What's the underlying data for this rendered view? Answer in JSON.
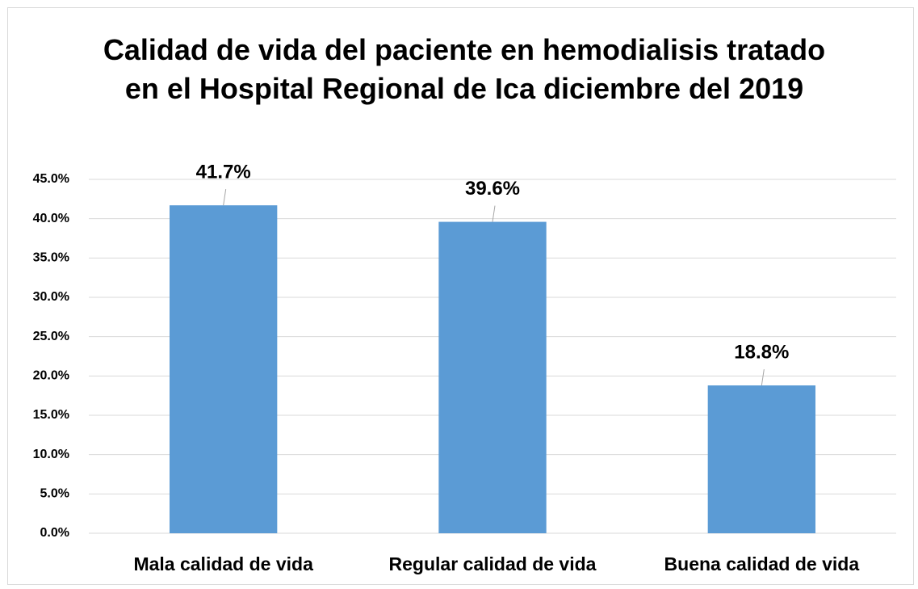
{
  "chart_data": {
    "type": "bar",
    "title": "Calidad de vida del paciente en hemodialisis tratado en el Hospital Regional de Ica diciembre del 2019",
    "categories": [
      "Mala calidad de vida",
      "Regular calidad de vida",
      "Buena calidad de vida"
    ],
    "values": [
      41.7,
      39.6,
      18.8
    ],
    "value_labels": [
      "41.7%",
      "39.6%",
      "18.8%"
    ],
    "color": "#5b9bd5",
    "ylim": [
      0,
      45
    ],
    "yticks": [
      {
        "value": 0,
        "label": "0.0%"
      },
      {
        "value": 5,
        "label": "5.0%"
      },
      {
        "value": 10,
        "label": "10.0%"
      },
      {
        "value": 15,
        "label": "15.0%"
      },
      {
        "value": 20,
        "label": "20.0%"
      },
      {
        "value": 25,
        "label": "25.0%"
      },
      {
        "value": 30,
        "label": "30.0%"
      },
      {
        "value": 35,
        "label": "35.0%"
      },
      {
        "value": 40,
        "label": "40.0%"
      },
      {
        "value": 45,
        "label": "45.0%"
      }
    ],
    "grid": true
  }
}
